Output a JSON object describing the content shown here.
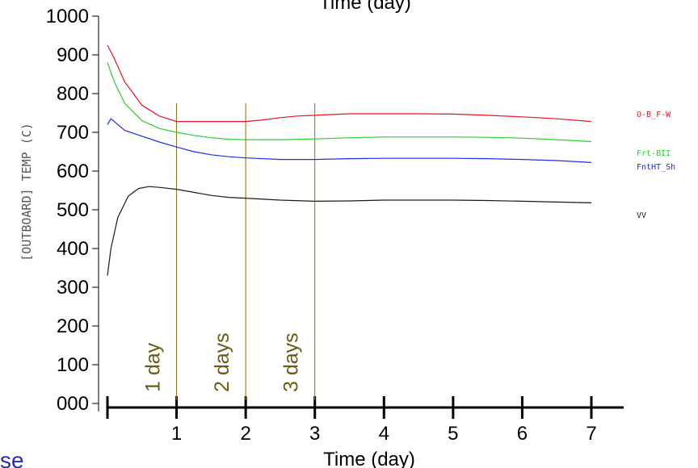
{
  "chart_data": {
    "type": "line",
    "title": "Time (day)",
    "xlabel": "Time (day)",
    "ylabel": "[OUTBOARD] TEMP (C)",
    "xlim": [
      0,
      7
    ],
    "ylim": [
      0,
      1000
    ],
    "x_ticks": [
      "1",
      "2",
      "3",
      "4",
      "5",
      "6",
      "7"
    ],
    "y_ticks": [
      "000",
      "100",
      "200",
      "300",
      "400",
      "500",
      "600",
      "700",
      "800",
      "900",
      "1000"
    ],
    "series": [
      {
        "name": "O-B_F-W",
        "color": "#e8141e",
        "x": [
          0,
          0.1,
          0.25,
          0.5,
          0.75,
          1.0,
          1.25,
          1.5,
          1.75,
          2.0,
          2.25,
          2.5,
          2.75,
          3.0,
          3.5,
          4.0,
          4.5,
          5.0,
          5.5,
          6.0,
          6.5,
          7.0
        ],
        "y": [
          925,
          890,
          830,
          770,
          742,
          728,
          728,
          728,
          728,
          728,
          732,
          738,
          742,
          744,
          748,
          748,
          748,
          747,
          744,
          740,
          735,
          728
        ]
      },
      {
        "name": "Frt-BII",
        "color": "#2ccd2c",
        "x": [
          0,
          0.1,
          0.25,
          0.5,
          0.75,
          1.0,
          1.25,
          1.5,
          1.75,
          2.0,
          2.5,
          3.0,
          3.5,
          4.0,
          4.5,
          5.0,
          5.5,
          6.0,
          6.5,
          7.0
        ],
        "y": [
          880,
          830,
          775,
          730,
          710,
          700,
          692,
          686,
          682,
          681,
          681,
          683,
          686,
          688,
          688,
          688,
          687,
          685,
          681,
          676
        ]
      },
      {
        "name": "FntHT_Sh",
        "color": "#1e2ee8",
        "x": [
          0,
          0.05,
          0.25,
          0.5,
          0.75,
          1.0,
          1.25,
          1.5,
          1.75,
          2.0,
          2.5,
          3.0,
          3.5,
          4.0,
          4.5,
          5.0,
          5.5,
          6.0,
          6.5,
          7.0
        ],
        "y": [
          720,
          735,
          705,
          690,
          675,
          662,
          650,
          642,
          637,
          634,
          630,
          630,
          632,
          633,
          633,
          633,
          632,
          630,
          627,
          622
        ]
      },
      {
        "name": "VV",
        "color": "#1a1a1a",
        "x": [
          0,
          0.05,
          0.15,
          0.3,
          0.45,
          0.6,
          0.75,
          1.0,
          1.25,
          1.5,
          1.75,
          2.0,
          2.5,
          3.0,
          3.5,
          4.0,
          4.5,
          5.0,
          5.5,
          6.0,
          6.5,
          7.0
        ],
        "y": [
          330,
          400,
          480,
          535,
          555,
          560,
          558,
          553,
          545,
          537,
          532,
          530,
          525,
          522,
          523,
          525,
          525,
          525,
          524,
          522,
          520,
          518
        ]
      }
    ],
    "annotations": [
      {
        "x": 1,
        "label": "1 day"
      },
      {
        "x": 2,
        "label": "2 days"
      },
      {
        "x": 3,
        "label": "3 days"
      }
    ],
    "grid": false,
    "legend_position": "right"
  },
  "extra_text": "se"
}
